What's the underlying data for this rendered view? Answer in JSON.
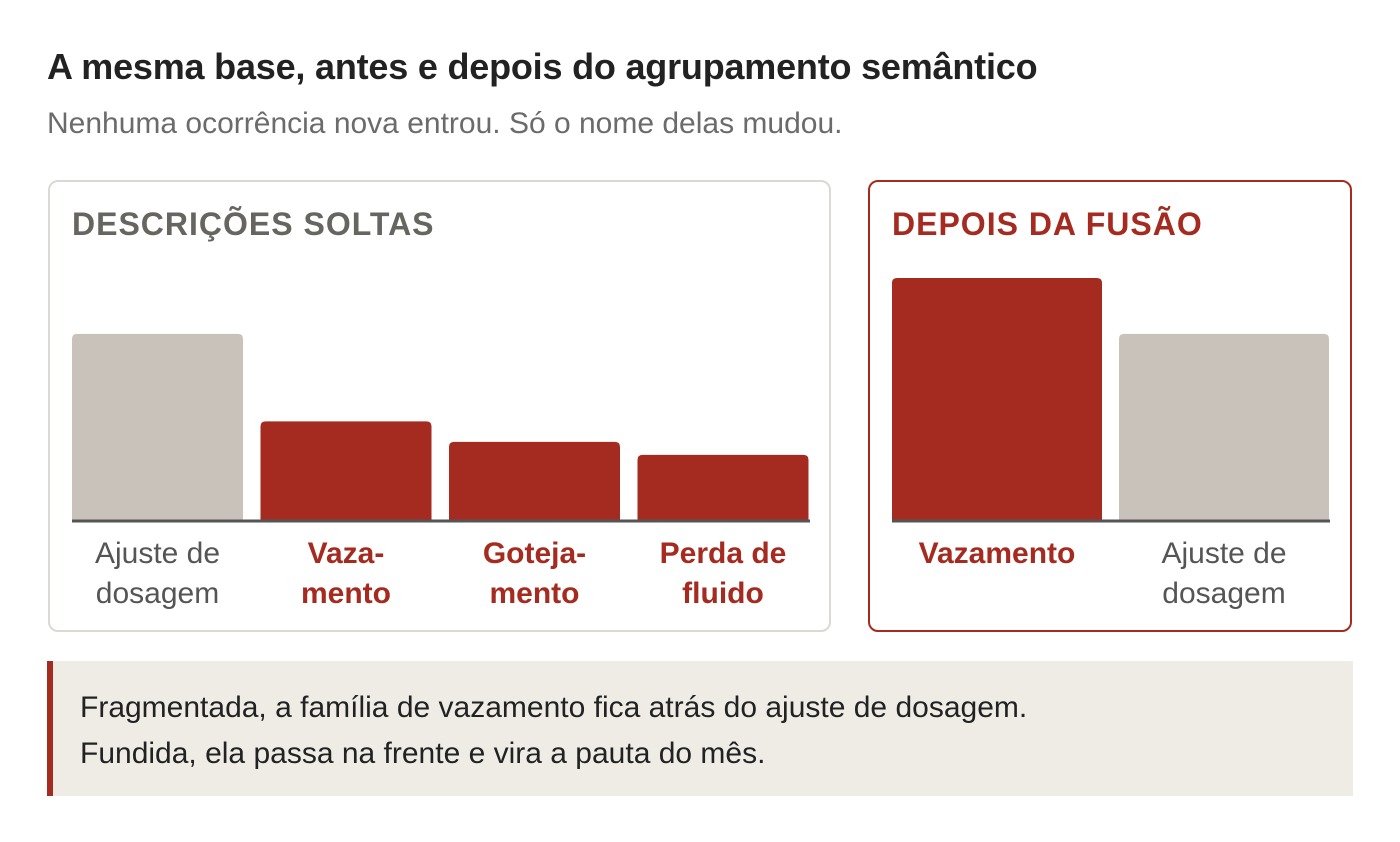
{
  "title": "A mesma base, antes e depois do agrupamento semântico",
  "subtitle": "Nenhuma ocorrência nova entrou. Só o nome delas mudou.",
  "colors": {
    "highlight": "#a52a1f",
    "base": "#c9c2bb",
    "axis": "#555555"
  },
  "chart_data": [
    {
      "type": "bar",
      "title": "DESCRIÇÕES SOLTAS",
      "categories": [
        "Ajuste de\ndosagem",
        "Vaza-\nmento",
        "Goteja-\nmento",
        "Perda de\nfluido"
      ],
      "values": [
        100,
        53,
        42,
        35
      ],
      "highlight": [
        false,
        true,
        true,
        true
      ],
      "ylim": [
        0,
        130
      ],
      "grid": false
    },
    {
      "type": "bar",
      "title": "DEPOIS DA FUSÃO",
      "categories": [
        "Vazamento",
        "Ajuste de\ndosagem"
      ],
      "values": [
        130,
        100
      ],
      "highlight": [
        true,
        false
      ],
      "ylim": [
        0,
        130
      ],
      "grid": false
    }
  ],
  "note": {
    "line1": "Fragmentada, a família de vazamento fica atrás do ajuste de dosagem.",
    "line2": "Fundida, ela passa na frente e vira a pauta do mês."
  }
}
